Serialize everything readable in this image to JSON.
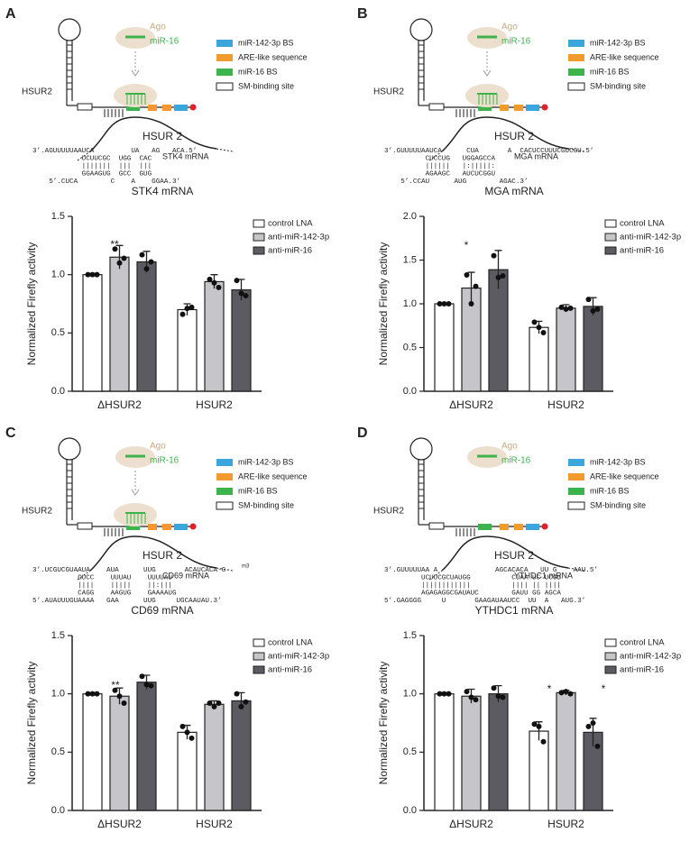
{
  "panels": [
    {
      "letter": "A",
      "hsur": "HSUR2",
      "ago": "Ago",
      "mir": "miR-16",
      "legend": [
        "miR-142-3p BS",
        "ARE-like sequence",
        "miR-16 BS",
        "SM-binding site"
      ],
      "mrna": "STK4 mRNA",
      "heading": "HSUR 2",
      "sequence": [
        "3’.AGUUUUUAAUCA         UA   AG   ACA.5’",
        "            UCUUCGC  UGG  CAC",
        "            |||||||  |||  |||",
        "            GGAAGUG  GCC  GUG",
        "    5’.CUCA        C    A    GGAA.3’"
      ]
    },
    {
      "letter": "B",
      "hsur": "HSUR2",
      "ago": "Ago",
      "mir": "miR-16",
      "legend": [
        "miR-142-3p BS",
        "ARE-like sequence",
        "miR-16 BS",
        "SM-binding site"
      ],
      "mrna": "MGA mRNA",
      "heading": "HSUR 2",
      "sequence": [
        "3’.GUUUUUAAUCA      CUA       A  CACUCCUUUCGUCGU.5’",
        "          CUCCUG   UGGAGCCA",
        "          ||||||   |:|||||:",
        "          AGAAGC   AUCUCGGU",
        "    5’.CCAU      AUG        AGAC.3’"
      ]
    },
    {
      "letter": "C",
      "hsur": "HSUR2",
      "ago": "Ago",
      "mir": "miR-16",
      "legend": [
        "miR-142-3p BS",
        "ARE-like sequence",
        "miR-16 BS",
        "SM-binding site"
      ],
      "mrna": "CD69 mRNA",
      "heading": "HSUR 2",
      "cap": "m3",
      "sequence": [
        "3’.UCGUCGUAAUA    AUA      UUG       ACAUCACA-G",
        "           GUCC    UUUAU    UUUUAU",
        "           ||||    |||||    ||:|||",
        "           CAGG    AAGUG    GAAAAUG",
        "5’.AUAUUUGUAAAA   GAA      UUG     UGCAAUAU.3’"
      ]
    },
    {
      "letter": "D",
      "hsur": "HSUR2",
      "ago": "Ago",
      "mir": "miR-16",
      "legend": [
        "miR-142-3p BS",
        "ARE-like sequence",
        "miR-16 BS",
        "SM-binding site"
      ],
      "mrna": "YTHDC1 mRNA",
      "heading": "HSUR 2",
      "sequence": [
        "3’.GUUUUUAA A              AGCACACA   UU G    AAU.5’",
        "         UCUUCGCUAUGG          CUAA UC UCGU",
        "         ||||||||||||          |||| || ||||",
        "         AGAGAGGCGAUAUC        GAUU GG AGCA",
        "5’.GAGGGG     U       GAAGAUAAUCC  UU  A   AUG.3’"
      ]
    }
  ],
  "chart_data": [
    {
      "type": "bar",
      "title": "STK4 mRNA",
      "ylabel": "Normalized Firefly activity",
      "categories": [
        "ΔHSUR2",
        "HSUR2"
      ],
      "series": [
        {
          "name": "control LNA",
          "color": "#ffffff",
          "values": [
            1.0,
            0.7
          ],
          "errors": [
            0.01,
            0.05
          ],
          "points": [
            [
              1.0,
              1.0,
              1.0
            ],
            [
              0.66,
              0.71,
              0.72
            ]
          ]
        },
        {
          "name": "anti-miR-142-3p",
          "color": "#c6c6ca",
          "values": [
            1.15,
            0.94
          ],
          "errors": [
            0.1,
            0.06
          ],
          "points": [
            [
              1.22,
              1.1,
              1.14
            ],
            [
              0.96,
              0.93,
              0.89
            ]
          ]
        },
        {
          "name": "anti-miR-16",
          "color": "#5b5b61",
          "values": [
            1.11,
            0.87
          ],
          "errors": [
            0.09,
            0.09
          ],
          "points": [
            [
              1.17,
              1.05,
              1.11
            ],
            [
              0.95,
              0.84,
              0.82
            ]
          ]
        }
      ],
      "ylim": [
        0,
        1.5
      ],
      "yticks": [
        {
          "value": 0,
          "label": "0.0"
        },
        0.5,
        {
          "value": 1,
          "label": "1.0"
        },
        1.5
      ],
      "annotations": [
        "**"
      ]
    },
    {
      "type": "bar",
      "title": "MGA mRNA",
      "ylabel": "Normalized Firefly activity",
      "categories": [
        "ΔHSUR2",
        "HSUR2"
      ],
      "series": [
        {
          "name": "control LNA",
          "color": "#ffffff",
          "values": [
            1.0,
            0.73
          ],
          "errors": [
            0.01,
            0.07
          ],
          "points": [
            [
              1.0,
              1.0,
              1.0
            ],
            [
              0.79,
              0.73,
              0.67
            ]
          ]
        },
        {
          "name": "anti-miR-142-3p",
          "color": "#c6c6ca",
          "values": [
            1.18,
            0.95
          ],
          "errors": [
            0.18,
            0.04
          ],
          "points": [
            [
              1.33,
              1.0,
              1.2
            ],
            [
              0.96,
              0.94,
              0.95
            ]
          ]
        },
        {
          "name": "anti-miR-16",
          "color": "#5b5b61",
          "values": [
            1.39,
            0.97
          ],
          "errors": [
            0.22,
            0.1
          ],
          "points": [
            [
              1.55,
              1.3,
              1.32
            ],
            [
              1.05,
              0.92,
              0.94
            ]
          ]
        }
      ],
      "ylim": [
        0,
        2
      ],
      "yticks": [
        {
          "value": 0,
          "label": "0.0"
        },
        0.5,
        {
          "value": 1,
          "label": "1.0"
        },
        1.5,
        {
          "value": 2,
          "label": "2.0"
        }
      ],
      "annotations": [
        "*"
      ]
    },
    {
      "type": "bar",
      "title": "CD69 mRNA",
      "ylabel": "Normalized Firefly activity",
      "categories": [
        "ΔHSUR2",
        "HSUR2"
      ],
      "series": [
        {
          "name": "control LNA",
          "color": "#ffffff",
          "values": [
            1.0,
            0.67
          ],
          "errors": [
            0.01,
            0.06
          ],
          "points": [
            [
              1.0,
              1.0,
              1.0
            ],
            [
              0.72,
              0.67,
              0.62
            ]
          ]
        },
        {
          "name": "anti-miR-142-3p",
          "color": "#c6c6ca",
          "values": [
            0.98,
            0.91
          ],
          "errors": [
            0.07,
            0.03
          ],
          "points": [
            [
              1.03,
              0.98,
              0.92
            ],
            [
              0.92,
              0.89,
              0.92
            ]
          ]
        },
        {
          "name": "anti-miR-16",
          "color": "#5b5b61",
          "values": [
            1.1,
            0.94
          ],
          "errors": [
            0.06,
            0.07
          ],
          "points": [
            [
              1.15,
              1.08,
              1.07
            ],
            [
              1.0,
              0.89,
              0.93
            ]
          ]
        }
      ],
      "ylim": [
        0,
        1.5
      ],
      "yticks": [
        {
          "value": 0,
          "label": "0.0"
        },
        0.5,
        {
          "value": 1,
          "label": "1.0"
        },
        1.5
      ],
      "annotations": [
        "**"
      ]
    },
    {
      "type": "bar",
      "title": "YTHDC1 mRNA",
      "ylabel": "Normalized Firefly activity",
      "categories": [
        "ΔHSUR2",
        "HSUR2"
      ],
      "series": [
        {
          "name": "control LNA",
          "color": "#ffffff",
          "values": [
            1.0,
            0.68
          ],
          "errors": [
            0.01,
            0.08
          ],
          "points": [
            [
              1.0,
              1.0,
              1.0
            ],
            [
              0.74,
              0.72,
              0.59
            ]
          ]
        },
        {
          "name": "anti-miR-142-3p",
          "color": "#c6c6ca",
          "values": [
            0.98,
            1.01
          ],
          "errors": [
            0.06,
            0.02
          ],
          "points": [
            [
              1.02,
              0.97,
              0.95
            ],
            [
              1.01,
              1.02,
              1.0
            ]
          ]
        },
        {
          "name": "anti-miR-16",
          "color": "#5b5b61",
          "values": [
            1.0,
            0.67
          ],
          "errors": [
            0.07,
            0.12
          ],
          "points": [
            [
              1.05,
              0.98,
              0.97
            ],
            [
              0.72,
              0.75,
              0.55
            ]
          ]
        }
      ],
      "ylim": [
        0,
        1.5
      ],
      "yticks": [
        {
          "value": 0,
          "label": "0.0"
        },
        0.5,
        {
          "value": 1,
          "label": "1.0"
        },
        1.5
      ],
      "annotations": [
        "*",
        "*"
      ]
    }
  ]
}
